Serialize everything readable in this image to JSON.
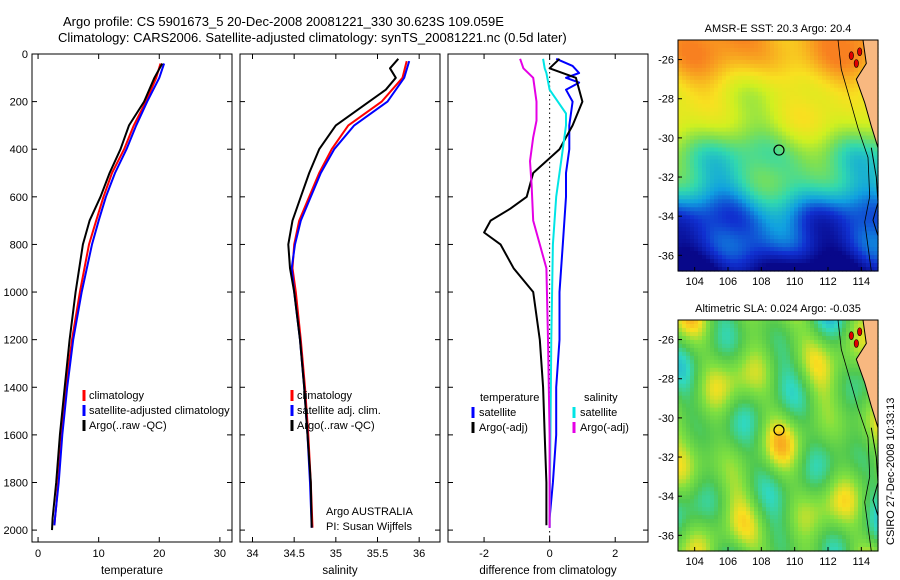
{
  "header": {
    "line1": "Argo profile: CS 5901673_5 20-Dec-2008 20081221_330 30.623S 109.059E",
    "line2": "Climatology: CARS2006. Satellite-adjusted climatology: synTS_20081221.nc (0.5d later)"
  },
  "colors": {
    "climatology": "#ff0000",
    "satellite": "#0000ff",
    "argo": "#000000",
    "salinity_satellite": "#00e5e5",
    "salinity_argo": "#e500e5"
  },
  "chart_data": [
    {
      "type": "line",
      "id": "temperature",
      "xlabel": "temperature",
      "ylabel": "",
      "xlim": [
        -1,
        32
      ],
      "ylim": [
        2050,
        0
      ],
      "xticks": [
        0,
        10,
        20,
        30
      ],
      "yticks": [
        0,
        200,
        400,
        600,
        800,
        1000,
        1200,
        1400,
        1600,
        1800,
        2000
      ],
      "y_reversed": true,
      "legend_position": "lower-right",
      "legend": [
        "climatology",
        "satellite-adjusted climatology",
        "Argo(..raw -QC)"
      ],
      "series": [
        {
          "name": "climatology",
          "color": "#ff0000",
          "x": [
            20.2,
            19.5,
            17.8,
            15.8,
            14.2,
            12.2,
            10.8,
            9.6,
            8.4,
            6.9,
            5.6,
            4.6,
            3.9,
            3.3,
            3.0,
            2.8,
            2.7
          ],
          "y": [
            40,
            100,
            200,
            300,
            400,
            500,
            600,
            700,
            800,
            1000,
            1200,
            1400,
            1600,
            1800,
            1900,
            1950,
            1980
          ]
        },
        {
          "name": "satellite-adjusted climatology",
          "color": "#0000ff",
          "x": [
            20.8,
            20.0,
            18.0,
            16.2,
            14.6,
            12.7,
            11.2,
            10.0,
            8.9,
            7.2,
            5.8,
            4.8,
            4.0,
            3.4,
            3.0,
            2.8,
            2.7
          ],
          "y": [
            40,
            100,
            200,
            300,
            400,
            500,
            600,
            700,
            800,
            1000,
            1200,
            1400,
            1600,
            1800,
            1900,
            1950,
            1980
          ]
        },
        {
          "name": "Argo(..raw -QC)",
          "color": "#000000",
          "x": [
            20.5,
            19.2,
            17.5,
            15.0,
            13.6,
            11.8,
            10.3,
            8.5,
            7.4,
            6.2,
            5.2,
            4.4,
            3.6,
            3.0,
            2.6,
            2.4,
            2.3
          ],
          "y": [
            40,
            100,
            200,
            300,
            400,
            500,
            600,
            700,
            800,
            1000,
            1200,
            1400,
            1600,
            1800,
            1900,
            1950,
            2000
          ]
        }
      ]
    },
    {
      "type": "line",
      "id": "salinity",
      "xlabel": "salinity",
      "ylabel": "",
      "xlim": [
        33.85,
        36.25
      ],
      "ylim": [
        2050,
        0
      ],
      "xticks": [
        34,
        34.5,
        35,
        35.5,
        36
      ],
      "y_reversed": true,
      "legend_position": "lower-right",
      "legend": [
        "climatology",
        "satellite adj. clim.",
        "Argo(..raw -QC)"
      ],
      "annotation_lines": [
        "Argo AUSTRALIA",
        "PI: Susan Wijffels"
      ],
      "series": [
        {
          "name": "climatology",
          "color": "#ff0000",
          "x": [
            35.85,
            35.8,
            35.55,
            35.15,
            34.95,
            34.8,
            34.68,
            34.56,
            34.5,
            34.48,
            34.52,
            34.58,
            34.63,
            34.67,
            34.7,
            34.72
          ],
          "y": [
            30,
            100,
            200,
            300,
            400,
            500,
            600,
            700,
            800,
            900,
            1000,
            1200,
            1400,
            1600,
            1800,
            1990
          ]
        },
        {
          "name": "satellite adj. clim.",
          "color": "#0000ff",
          "x": [
            35.88,
            35.82,
            35.62,
            35.22,
            34.98,
            34.82,
            34.7,
            34.58,
            34.51,
            34.47,
            34.5,
            34.57,
            34.62,
            34.66,
            34.69,
            34.71
          ],
          "y": [
            30,
            100,
            200,
            300,
            400,
            500,
            600,
            700,
            800,
            900,
            1000,
            1200,
            1400,
            1600,
            1800,
            1990
          ]
        },
        {
          "name": "Argo(..raw -QC)",
          "color": "#000000",
          "x": [
            35.75,
            35.65,
            35.72,
            35.6,
            35.4,
            35.0,
            34.8,
            34.68,
            34.58,
            34.48,
            34.43,
            34.45,
            34.5,
            34.57,
            34.62,
            34.66,
            34.7,
            34.71
          ],
          "y": [
            20,
            60,
            100,
            150,
            200,
            300,
            400,
            500,
            600,
            700,
            800,
            900,
            1000,
            1200,
            1400,
            1600,
            1800,
            1990
          ]
        }
      ]
    },
    {
      "type": "line",
      "id": "difference",
      "xlabel": "difference from climatology",
      "ylabel": "",
      "xlim": [
        -3.1,
        3.0
      ],
      "ylim": [
        2050,
        0
      ],
      "xticks": [
        -2,
        0,
        2
      ],
      "y_reversed": true,
      "legend_position": "lower-right",
      "legend_headers": [
        "temperature",
        "salinity"
      ],
      "legend": [
        "satellite",
        "Argo(-adj)",
        "satellite",
        "Argo(-adj)"
      ],
      "zero_line": true,
      "series": [
        {
          "name": "temperature satellite",
          "group": "temperature",
          "color": "#0000ff",
          "x": [
            0.2,
            0.7,
            0.9,
            0.5,
            0.9,
            0.5,
            0.7,
            0.6,
            0.6,
            0.5,
            0.5,
            0.4,
            0.3,
            0.3,
            0.2,
            0.2,
            0.1,
            0.0,
            0.0
          ],
          "y": [
            20,
            50,
            80,
            100,
            120,
            150,
            200,
            300,
            400,
            500,
            600,
            800,
            1000,
            1200,
            1400,
            1600,
            1800,
            1950,
            1990
          ]
        },
        {
          "name": "temperature Argo(-adj)",
          "group": "temperature",
          "color": "#000000",
          "x": [
            0.3,
            0.0,
            0.8,
            1.0,
            0.7,
            0.3,
            -0.5,
            -0.7,
            -1.2,
            -1.8,
            -2.0,
            -1.5,
            -1.1,
            -0.5,
            -0.3,
            -0.2,
            -0.15,
            -0.1,
            -0.1
          ],
          "y": [
            20,
            60,
            100,
            200,
            300,
            400,
            500,
            600,
            650,
            700,
            750,
            800,
            900,
            1000,
            1200,
            1400,
            1600,
            1800,
            1980
          ]
        },
        {
          "name": "salinity satellite",
          "group": "salinity",
          "color": "#00e5e5",
          "x": [
            -0.2,
            -0.15,
            -0.1,
            0.0,
            0.25,
            0.5,
            0.5,
            0.4,
            0.3,
            0.2,
            0.1,
            0.05,
            0.0
          ],
          "y": [
            20,
            60,
            80,
            150,
            200,
            250,
            300,
            400,
            500,
            600,
            800,
            1200,
            1990
          ]
        },
        {
          "name": "salinity Argo(-adj)",
          "group": "salinity",
          "color": "#e500e5",
          "x": [
            -0.9,
            -0.8,
            -0.5,
            -0.4,
            -0.4,
            -0.5,
            -0.6,
            -0.55,
            -0.5,
            -0.3,
            -0.2,
            -0.1,
            -0.05,
            0.0,
            0.0
          ],
          "y": [
            20,
            60,
            100,
            200,
            280,
            350,
            450,
            550,
            700,
            800,
            850,
            900,
            1200,
            1600,
            1990
          ]
        }
      ]
    },
    {
      "type": "heatmap",
      "id": "sst_map",
      "title": "AMSR-E SST: 20.3 Argo: 20.4",
      "xlim": [
        103,
        115
      ],
      "ylim": [
        -36.8,
        -25
      ],
      "xticks": [
        104,
        106,
        108,
        110,
        112,
        114
      ],
      "yticks": [
        -26,
        -28,
        -30,
        -32,
        -34,
        -36
      ],
      "argo_position": {
        "lon": 109.059,
        "lat": -30.623
      },
      "colors": [
        "#08088a",
        "#1030d0",
        "#10a0e0",
        "#30d8b0",
        "#80e050",
        "#d0f020",
        "#f8e020",
        "#f8b020",
        "#f88020"
      ]
    },
    {
      "type": "heatmap",
      "id": "sla_map",
      "title": "Altimetric SLA: 0.024 Argo: -0.035",
      "xlim": [
        103,
        115
      ],
      "ylim": [
        -36.8,
        -25
      ],
      "xticks": [
        104,
        106,
        108,
        110,
        112,
        114
      ],
      "yticks": [
        -26,
        -28,
        -30,
        -32,
        -34,
        -36
      ],
      "argo_position": {
        "lon": 109.059,
        "lat": -30.623
      },
      "colors": [
        "#20a0e0",
        "#30d8c0",
        "#50c850",
        "#80e040",
        "#f8e020",
        "#f89020",
        "#e04020"
      ]
    }
  ],
  "footer": {
    "credit": "CSIRO 27-Dec-2008 10:33:13"
  }
}
